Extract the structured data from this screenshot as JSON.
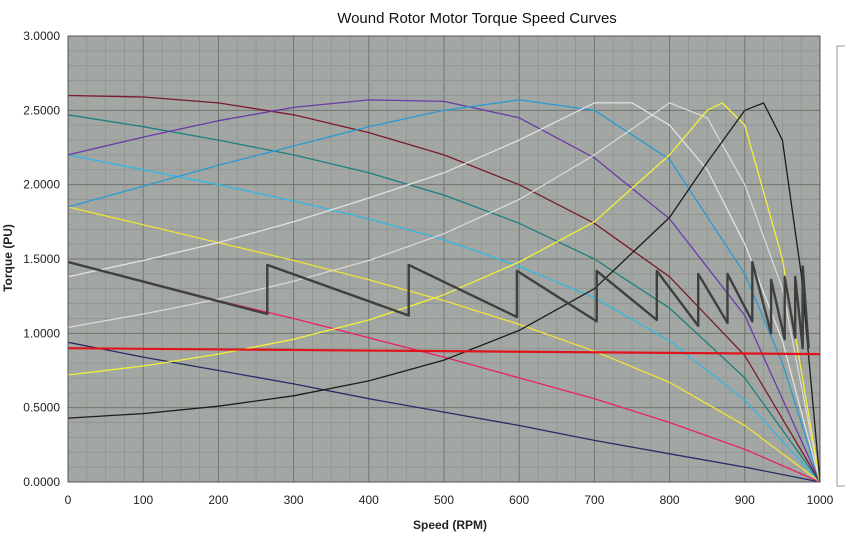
{
  "chart_data": {
    "type": "line",
    "title": "Wound Rotor Motor Torque Speed Curves",
    "xlabel": "Speed (RPM)",
    "ylabel": "Torque (PU)",
    "xlim": [
      0,
      1000
    ],
    "ylim": [
      0,
      3
    ],
    "x_ticks": [
      "0",
      "100",
      "200",
      "300",
      "400",
      "500",
      "600",
      "700",
      "800",
      "900",
      "1000"
    ],
    "y_ticks": [
      "0.0000",
      "0.5000",
      "1.0000",
      "1.5000",
      "2.0000",
      "2.5000",
      "3.0000"
    ],
    "grid": true,
    "legend": "none",
    "plot_background": "#a3a7a3",
    "colors": {
      "grid_major": "#707570",
      "grid_minor": "#8d918d",
      "load_line": "#e0141c",
      "accel_path": "#3f3f3f"
    },
    "series": [
      {
        "color": "#2a2a66",
        "x": [
          0,
          100,
          200,
          300,
          400,
          500,
          600,
          700,
          800,
          900,
          1000
        ],
        "y": [
          0.94,
          0.84,
          0.75,
          0.66,
          0.56,
          0.47,
          0.38,
          0.28,
          0.19,
          0.1,
          0.0
        ]
      },
      {
        "color": "#e8206a",
        "x": [
          0,
          100,
          200,
          300,
          400,
          500,
          600,
          700,
          800,
          900,
          1000
        ],
        "y": [
          1.48,
          1.35,
          1.22,
          1.1,
          0.97,
          0.84,
          0.7,
          0.56,
          0.4,
          0.22,
          0.0
        ]
      },
      {
        "color": "#f0e23a",
        "x": [
          0,
          100,
          200,
          300,
          400,
          500,
          600,
          700,
          800,
          900,
          1000
        ],
        "y": [
          1.85,
          1.73,
          1.61,
          1.49,
          1.36,
          1.22,
          1.06,
          0.88,
          0.67,
          0.38,
          0.0
        ]
      },
      {
        "color": "#35b6e6",
        "x": [
          0,
          100,
          200,
          300,
          400,
          500,
          600,
          700,
          800,
          900,
          1000
        ],
        "y": [
          2.2,
          2.1,
          2.0,
          1.89,
          1.77,
          1.63,
          1.45,
          1.24,
          0.95,
          0.55,
          0.0
        ]
      },
      {
        "color": "#1a8080",
        "x": [
          0,
          100,
          200,
          300,
          400,
          500,
          600,
          700,
          800,
          900,
          1000
        ],
        "y": [
          2.47,
          2.39,
          2.3,
          2.2,
          2.08,
          1.93,
          1.74,
          1.5,
          1.17,
          0.7,
          0.0
        ]
      },
      {
        "color": "#7a1a2e",
        "x": [
          0,
          100,
          200,
          300,
          400,
          500,
          600,
          700,
          800,
          900,
          1000
        ],
        "y": [
          2.6,
          2.59,
          2.55,
          2.47,
          2.35,
          2.2,
          2.0,
          1.74,
          1.38,
          0.85,
          0.0
        ]
      },
      {
        "color": "#6a3aa8",
        "x": [
          0,
          100,
          200,
          300,
          400,
          500,
          600,
          700,
          800,
          900,
          1000
        ],
        "y": [
          2.2,
          2.32,
          2.43,
          2.52,
          2.57,
          2.56,
          2.45,
          2.18,
          1.77,
          1.12,
          0.0
        ]
      },
      {
        "color": "#2a9ad0",
        "x": [
          0,
          100,
          200,
          300,
          400,
          500,
          600,
          700,
          800,
          900,
          950,
          1000
        ],
        "y": [
          1.85,
          1.99,
          2.13,
          2.26,
          2.39,
          2.5,
          2.57,
          2.5,
          2.17,
          1.4,
          0.8,
          0.0
        ]
      },
      {
        "color": "#e2e2e2",
        "x": [
          0,
          100,
          200,
          300,
          400,
          500,
          600,
          700,
          750,
          800,
          850,
          900,
          950,
          1000
        ],
        "y": [
          1.38,
          1.49,
          1.61,
          1.75,
          1.91,
          2.08,
          2.3,
          2.55,
          2.55,
          2.4,
          2.1,
          1.6,
          0.95,
          0.0
        ]
      },
      {
        "color": "#d8d8d8",
        "x": [
          0,
          100,
          200,
          300,
          400,
          500,
          600,
          700,
          800,
          850,
          900,
          950,
          1000
        ],
        "y": [
          1.04,
          1.13,
          1.23,
          1.35,
          1.49,
          1.67,
          1.9,
          2.2,
          2.55,
          2.45,
          2.0,
          1.3,
          0.0
        ]
      },
      {
        "color": "#f3ef3c",
        "x": [
          0,
          100,
          200,
          300,
          400,
          500,
          600,
          700,
          800,
          850,
          870,
          900,
          950,
          1000
        ],
        "y": [
          0.72,
          0.78,
          0.86,
          0.96,
          1.09,
          1.26,
          1.48,
          1.75,
          2.2,
          2.5,
          2.55,
          2.4,
          1.5,
          0.0
        ]
      },
      {
        "color": "#1c1c1c",
        "x": [
          0,
          100,
          200,
          300,
          400,
          500,
          600,
          700,
          800,
          850,
          900,
          925,
          950,
          975,
          1000
        ],
        "y": [
          0.43,
          0.46,
          0.51,
          0.58,
          0.68,
          0.82,
          1.02,
          1.3,
          1.78,
          2.15,
          2.5,
          2.55,
          2.3,
          1.4,
          0.0
        ]
      },
      {
        "color": "#e0141c",
        "x": [
          0,
          1000
        ],
        "y": [
          0.9,
          0.86
        ]
      },
      {
        "color": "#3f3f3f",
        "x": [
          0,
          265,
          265,
          453,
          453,
          597,
          597,
          703,
          703,
          783,
          783,
          838,
          838,
          877,
          877,
          910,
          910,
          935,
          935,
          953,
          953,
          967,
          967,
          977,
          977,
          985
        ],
        "y": [
          1.48,
          1.13,
          1.46,
          1.12,
          1.46,
          1.11,
          1.42,
          1.08,
          1.42,
          1.09,
          1.42,
          1.05,
          1.4,
          1.07,
          1.4,
          1.08,
          1.48,
          1.0,
          1.36,
          0.96,
          1.38,
          0.97,
          1.38,
          0.9,
          1.45,
          0.9
        ]
      }
    ]
  }
}
